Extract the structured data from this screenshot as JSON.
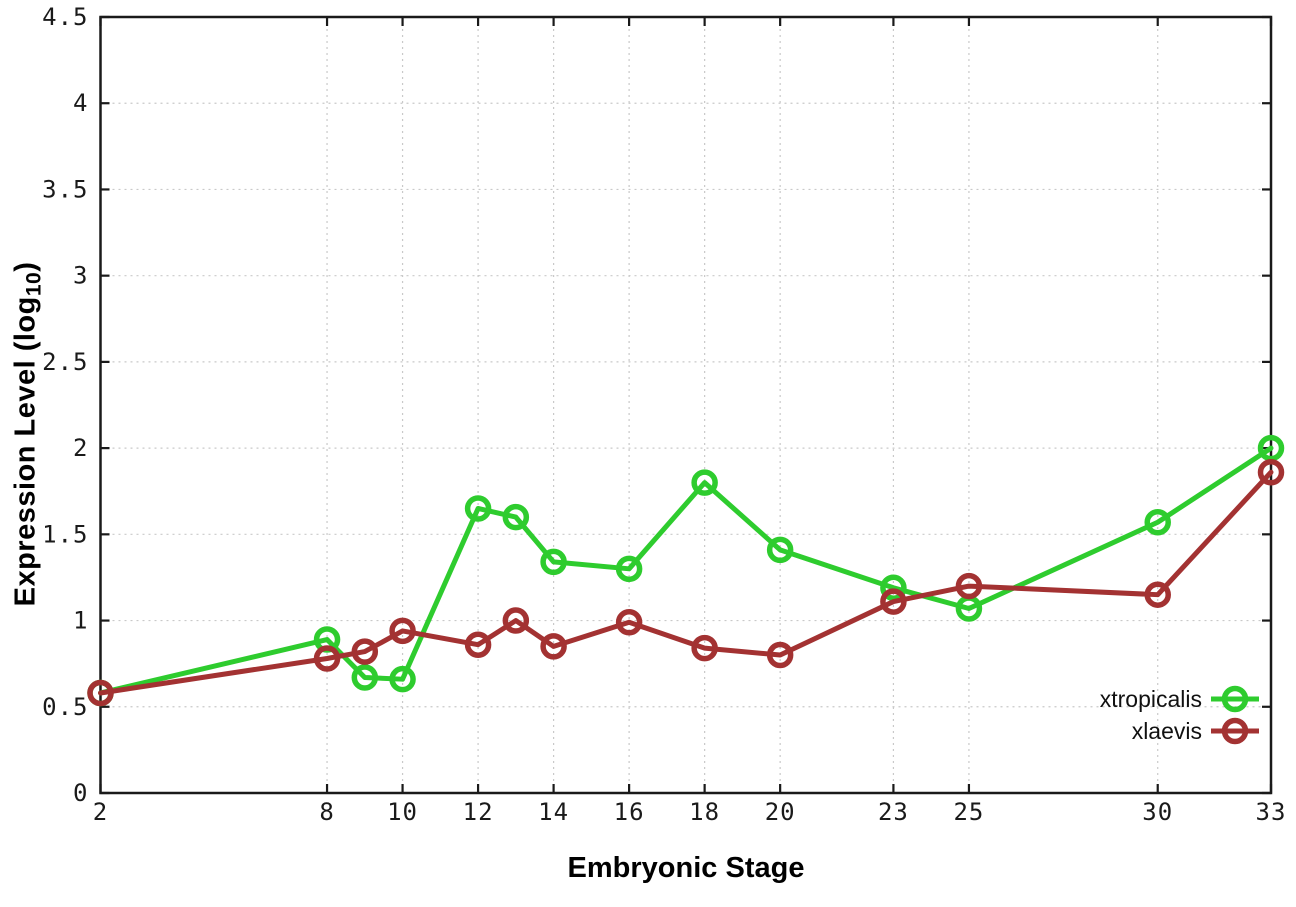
{
  "chart_data": {
    "type": "line",
    "title": "",
    "xlabel": "Embryonic Stage",
    "ylabel_parts": {
      "main": "Expression Level (log",
      "sub": "10",
      "end": ")"
    },
    "xlim": [
      2,
      33
    ],
    "ylim": [
      0,
      4.5
    ],
    "xticks": [
      2,
      8,
      10,
      12,
      14,
      16,
      18,
      20,
      23,
      25,
      30,
      33
    ],
    "xticklabels": [
      "2",
      "8",
      "10",
      "12",
      "14",
      "16",
      "18",
      "20",
      "23",
      "25",
      "30",
      "33"
    ],
    "yticks": [
      0,
      0.5,
      1,
      1.5,
      2,
      2.5,
      3,
      3.5,
      4,
      4.5
    ],
    "yticklabels": [
      "0",
      "0.5",
      "1",
      "1.5",
      "2",
      "2.5",
      "3",
      "3.5",
      "4",
      "4.5"
    ],
    "grid": true,
    "legend_position": "inside-bottom-right",
    "x": [
      2,
      8,
      9,
      10,
      12,
      13,
      14,
      16,
      18,
      20,
      23,
      25,
      30,
      33
    ],
    "series": [
      {
        "name": "xtropicalis",
        "color": "#2ecc2e",
        "marker": "open-circle",
        "values": [
          0.58,
          0.89,
          0.67,
          0.66,
          1.65,
          1.6,
          1.34,
          1.3,
          1.8,
          1.41,
          1.19,
          1.07,
          1.57,
          2.0
        ]
      },
      {
        "name": "xlaevis",
        "color": "#a33232",
        "marker": "open-circle",
        "values": [
          0.58,
          0.78,
          0.82,
          0.94,
          0.86,
          1.0,
          0.85,
          0.99,
          0.84,
          0.8,
          1.11,
          1.2,
          1.15,
          1.86
        ]
      }
    ],
    "colors": {
      "grid": "#c9c9c9",
      "axis": "#1a1a1a",
      "background": "#ffffff"
    }
  }
}
